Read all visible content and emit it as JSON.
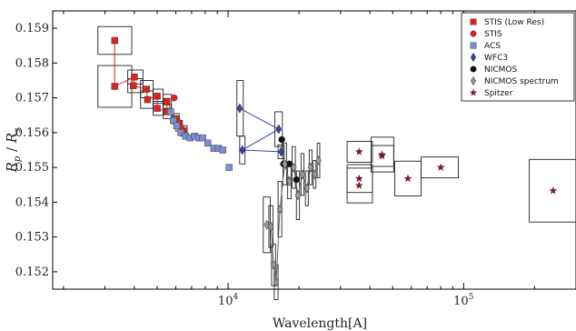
{
  "chart_data": {
    "type": "scatter",
    "title": "",
    "xlabel": "Wavelength[A]",
    "ylabel": "Rp / Rs",
    "ylabel_main": "R",
    "ylabel_sub1": "p",
    "ylabel_slash": " / ",
    "ylabel_main2": "R",
    "ylabel_sub2": "s",
    "x_scale": "log",
    "xlim": [
      1800,
      300000
    ],
    "ylim": [
      0.1515,
      0.1595
    ],
    "xticks": [
      {
        "value": 10000,
        "base": "10",
        "exp": "4"
      },
      {
        "value": 100000,
        "base": "10",
        "exp": "5"
      }
    ],
    "yticks": [
      {
        "value": 0.152,
        "label": "0.152"
      },
      {
        "value": 0.153,
        "label": "0.153"
      },
      {
        "value": 0.154,
        "label": "0.154"
      },
      {
        "value": 0.155,
        "label": "0.155"
      },
      {
        "value": 0.156,
        "label": "0.156"
      },
      {
        "value": 0.157,
        "label": "0.157"
      },
      {
        "value": 0.158,
        "label": "0.158"
      },
      {
        "value": 0.159,
        "label": "0.159"
      }
    ],
    "grid": false,
    "legend_position": "top-right",
    "series": [
      {
        "name": "STIS (Low Res)",
        "marker": "square",
        "color": "#dd2222",
        "connect": true,
        "points": [
          {
            "x": 3300,
            "y": 0.15865,
            "xerr": [
              2800,
              3900
            ],
            "yerr": 0.0004
          },
          {
            "x": 3300,
            "y": 0.15733,
            "xerr": [
              2800,
              3900
            ],
            "yerr": 0.0006
          },
          {
            "x": 4000,
            "y": 0.1576,
            "xerr": [
              3750,
              4350
            ],
            "yerr": 0.0002
          },
          {
            "x": 3960,
            "y": 0.15735,
            "xerr": [
              3750,
              4350
            ],
            "yerr": 0.0002
          },
          {
            "x": 4500,
            "y": 0.15725,
            "xerr": [
              4250,
              4800
            ],
            "yerr": 0.00025
          },
          {
            "x": 4550,
            "y": 0.15695,
            "xerr": [
              4250,
              4800
            ],
            "yerr": 0.00025
          },
          {
            "x": 5000,
            "y": 0.15705,
            "xerr": [
              4800,
              5300
            ],
            "yerr": 0.0002
          },
          {
            "x": 5000,
            "y": 0.1567,
            "xerr": [
              4800,
              5300
            ],
            "yerr": 0.0002
          },
          {
            "x": 5500,
            "y": 0.1566,
            "xerr": [
              5300,
              5750
            ],
            "yerr": 0.0002
          },
          {
            "x": 5500,
            "y": 0.1569,
            "xerr": [
              5300,
              5750
            ],
            "yerr": 0.0002
          },
          {
            "x": 6000,
            "y": 0.1564,
            "xerr": [
              5800,
              6200
            ],
            "yerr": 0.00015
          },
          {
            "x": 6200,
            "y": 0.1562,
            "xerr": [
              6000,
              6400
            ],
            "yerr": 0.00015
          },
          {
            "x": 6500,
            "y": 0.15605,
            "xerr": [
              6300,
              6700
            ],
            "yerr": 0.00015
          }
        ]
      },
      {
        "name": "STIS",
        "marker": "circle",
        "color": "#dd2222",
        "connect": false,
        "points": [
          {
            "x": 5900,
            "y": 0.157
          },
          {
            "x": 6050,
            "y": 0.1564
          },
          {
            "x": 6150,
            "y": 0.1563
          },
          {
            "x": 6300,
            "y": 0.15615
          },
          {
            "x": 6450,
            "y": 0.156
          }
        ]
      },
      {
        "name": "ACS",
        "marker": "square",
        "color": "#7b8fd4",
        "connect": false,
        "points": [
          {
            "x": 5700,
            "y": 0.1566
          },
          {
            "x": 5850,
            "y": 0.15635
          },
          {
            "x": 6050,
            "y": 0.1562
          },
          {
            "x": 6300,
            "y": 0.156
          },
          {
            "x": 6600,
            "y": 0.1559
          },
          {
            "x": 6900,
            "y": 0.15585
          },
          {
            "x": 7200,
            "y": 0.1559
          },
          {
            "x": 7500,
            "y": 0.15585
          },
          {
            "x": 7800,
            "y": 0.15585
          },
          {
            "x": 8200,
            "y": 0.1557
          },
          {
            "x": 8700,
            "y": 0.15555
          },
          {
            "x": 9100,
            "y": 0.15555
          },
          {
            "x": 9500,
            "y": 0.1555
          },
          {
            "x": 10100,
            "y": 0.155
          }
        ]
      },
      {
        "name": "WFC3",
        "marker": "diamond",
        "color": "#3344aa",
        "connect": true,
        "points": [
          {
            "x": 11200,
            "y": 0.1567,
            "xerr": [
              10900,
              11600
            ],
            "yerr": 0.0008
          },
          {
            "x": 16400,
            "y": 0.1561,
            "xerr": [
              15800,
              17000
            ],
            "yerr": 0.0005
          },
          {
            "x": 11500,
            "y": 0.1555,
            "xerr": [
              11200,
              11800
            ],
            "yerr": 0.0004
          },
          {
            "x": 16800,
            "y": 0.15545,
            "xerr": [
              16300,
              17300
            ],
            "yerr": 0.0002
          }
        ]
      },
      {
        "name": "NICMOS",
        "marker": "circle",
        "color": "#111111",
        "connect": false,
        "points": [
          {
            "x": 16900,
            "y": 0.1558
          },
          {
            "x": 17200,
            "y": 0.1551
          },
          {
            "x": 18200,
            "y": 0.1551
          },
          {
            "x": 19500,
            "y": 0.15465
          }
        ]
      },
      {
        "name": "NICMOS spectrum",
        "marker": "diamond",
        "color": "#999999",
        "connect": true,
        "points": [
          {
            "x": 14600,
            "y": 0.15335,
            "xerr": [
              14100,
              15100
            ],
            "yerr": 0.0008
          },
          {
            "x": 15200,
            "y": 0.1533,
            "xerr": [
              14900,
              15500
            ],
            "yerr": 0.0006
          },
          {
            "x": 15600,
            "y": 0.1522,
            "xerr": [
              15300,
              15900
            ],
            "yerr": 0.0006
          },
          {
            "x": 16000,
            "y": 0.1517,
            "xerr": [
              15700,
              16300
            ],
            "yerr": 0.0005
          },
          {
            "x": 16600,
            "y": 0.1538,
            "xerr": [
              16300,
              16900
            ],
            "yerr": 0.0008
          },
          {
            "x": 17400,
            "y": 0.1551,
            "xerr": [
              17100,
              17700
            ],
            "yerr": 0.0006
          },
          {
            "x": 18200,
            "y": 0.1546,
            "xerr": [
              17900,
              18500
            ],
            "yerr": 0.0005
          },
          {
            "x": 19000,
            "y": 0.155,
            "xerr": [
              18700,
              19300
            ],
            "yerr": 0.0006
          },
          {
            "x": 19800,
            "y": 0.1542,
            "xerr": [
              19500,
              20100
            ],
            "yerr": 0.0007
          },
          {
            "x": 20700,
            "y": 0.1548,
            "xerr": [
              20400,
              21000
            ],
            "yerr": 0.0006
          },
          {
            "x": 21600,
            "y": 0.1544,
            "xerr": [
              21300,
              21900
            ],
            "yerr": 0.0005
          },
          {
            "x": 22400,
            "y": 0.155,
            "xerr": [
              22100,
              22700
            ],
            "yerr": 0.0005
          },
          {
            "x": 23300,
            "y": 0.1548,
            "xerr": [
              23000,
              23600
            ],
            "yerr": 0.0004
          },
          {
            "x": 24200,
            "y": 0.1552,
            "xerr": [
              23900,
              24500
            ],
            "yerr": 0.0005
          }
        ]
      },
      {
        "name": "Spitzer",
        "marker": "star",
        "color": "#7a1c2a",
        "connect": false,
        "points": [
          {
            "x": 36000,
            "y": 0.15545,
            "xerr": [
              32000,
              41000
            ],
            "yerr": 0.0003
          },
          {
            "x": 36000,
            "y": 0.15468,
            "xerr": [
              32000,
              41000
            ],
            "yerr": 0.0004
          },
          {
            "x": 36000,
            "y": 0.15448,
            "xerr": [
              32000,
              41000
            ],
            "yerr": 0.0005
          },
          {
            "x": 45000,
            "y": 0.15533,
            "xerr": [
              40500,
              50500
            ],
            "yerr": 0.0003
          },
          {
            "x": 45000,
            "y": 0.15537,
            "xerr": [
              40500,
              50500
            ],
            "yerr": 0.0005
          },
          {
            "x": 58000,
            "y": 0.15468,
            "xerr": [
              51000,
              66000
            ],
            "yerr": 0.0005
          },
          {
            "x": 80000,
            "y": 0.155,
            "xerr": [
              66000,
              95000
            ],
            "yerr": 0.0003
          },
          {
            "x": 240000,
            "y": 0.15433,
            "xerr": [
              190000,
              300000
            ],
            "yerr": 0.0009
          }
        ]
      }
    ]
  }
}
